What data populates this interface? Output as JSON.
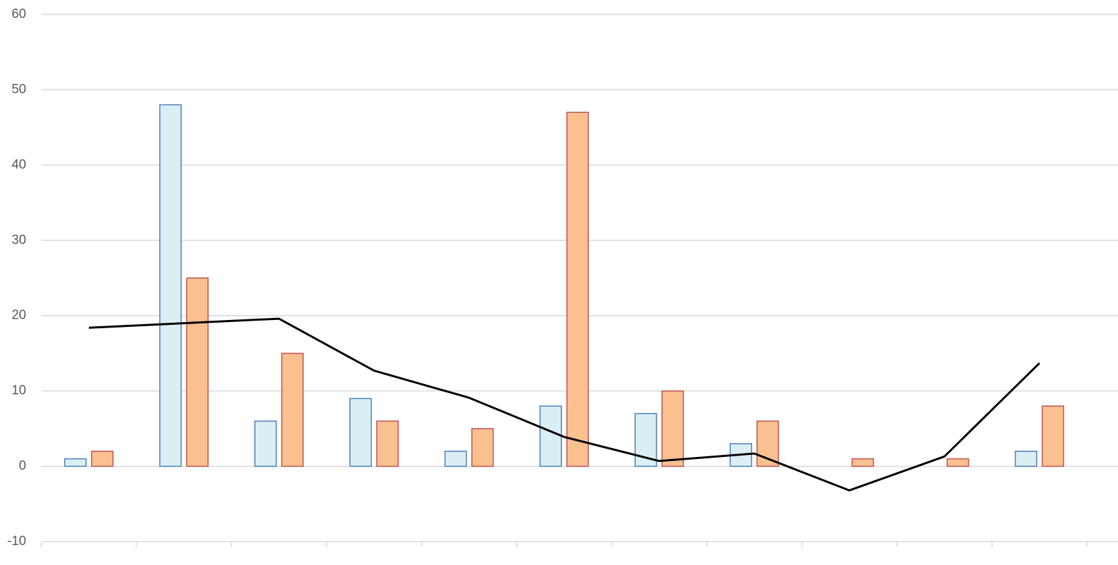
{
  "chart_data": {
    "type": "bar",
    "categories": [
      null,
      null,
      null,
      null,
      null,
      null,
      null,
      null,
      null,
      null,
      null
    ],
    "series": [
      {
        "color": "#daeef3",
        "stroke": "#4a7ebb",
        "values": [
          1,
          48,
          6,
          9,
          2,
          8,
          7,
          3,
          null,
          null,
          2
        ]
      },
      {
        "color": "#fac090",
        "stroke": "#c0504d",
        "values": [
          2,
          25,
          15,
          6,
          5,
          47,
          10,
          6,
          1,
          1,
          8
        ]
      },
      {
        "type": "line",
        "color": "#000000",
        "values": [
          18.4,
          19.0,
          19.6,
          12.7,
          9.1,
          3.9,
          0.7,
          1.7,
          -3.2,
          1.3,
          13.7
        ]
      }
    ],
    "ylim": [
      -10,
      60
    ],
    "yticks": [
      -10,
      0,
      10,
      20,
      30,
      40,
      50,
      60
    ],
    "grid": true
  }
}
